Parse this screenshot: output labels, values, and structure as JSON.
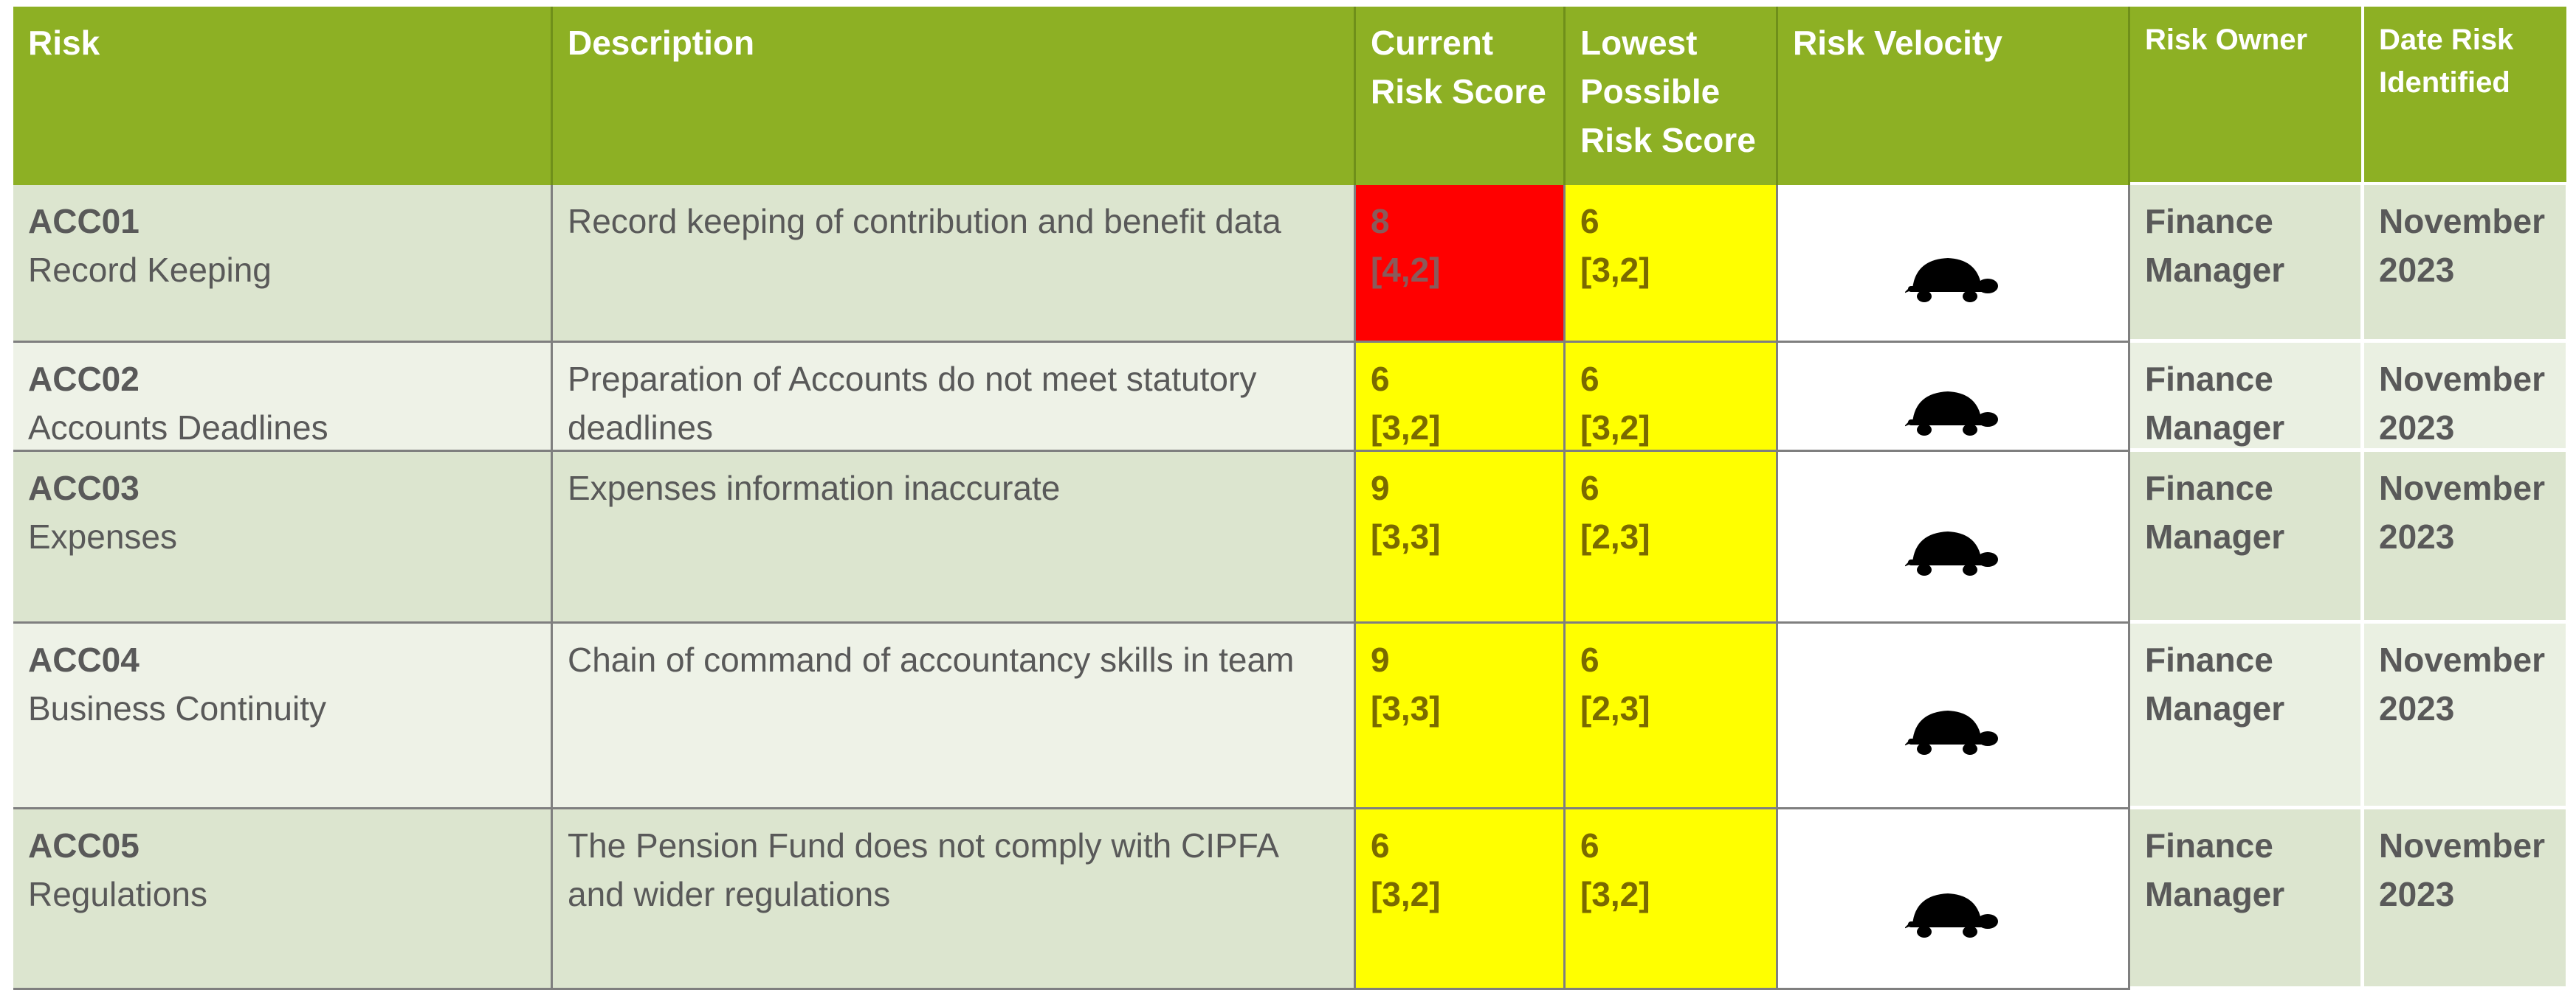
{
  "header": {
    "risk": "Risk",
    "description": "Description",
    "current": "Current Risk Score",
    "lowest": "Lowest Possible Risk Score",
    "velocity": "Risk Velocity",
    "owner": "Risk Owner",
    "date": "Date Risk Identified"
  },
  "rows": [
    {
      "id": "ACC01",
      "name": "Record Keeping",
      "description": "Record keeping of contribution and benefit data",
      "current_score": 8,
      "current_matrix": "[4,2]",
      "current_color": "#ff0000",
      "lowest_score": 6,
      "lowest_matrix": "[3,2]",
      "lowest_color": "#ffff00",
      "owner": "Finance Manager",
      "date": "November 2023"
    },
    {
      "id": "ACC02",
      "name": "Accounts Deadlines",
      "description": "Preparation of Accounts do not meet statutory deadlines",
      "current_score": 6,
      "current_matrix": "[3,2]",
      "current_color": "#ffff00",
      "lowest_score": 6,
      "lowest_matrix": "[3,2]",
      "lowest_color": "#ffff00",
      "owner": "Finance Manager",
      "date": "November 2023"
    },
    {
      "id": "ACC03",
      "name": "Expenses",
      "description": "Expenses information inaccurate",
      "current_score": 9,
      "current_matrix": "[3,3]",
      "current_color": "#ffff00",
      "lowest_score": 6,
      "lowest_matrix": "[2,3]",
      "lowest_color": "#ffff00",
      "owner": "Finance Manager",
      "date": "November 2023"
    },
    {
      "id": "ACC04",
      "name": "Business Continuity",
      "description": "Chain of command of accountancy skills in team",
      "current_score": 9,
      "current_matrix": "[3,3]",
      "current_color": "#ffff00",
      "lowest_score": 6,
      "lowest_matrix": "[2,3]",
      "lowest_color": "#ffff00",
      "owner": "Finance Manager",
      "date": "November 2023"
    },
    {
      "id": "ACC05",
      "name": "Regulations",
      "description": "The Pension Fund does not comply with CIPFA and wider regulations",
      "current_score": 6,
      "current_matrix": "[3,2]",
      "current_color": "#ffff00",
      "lowest_score": 6,
      "lowest_matrix": "[3,2]",
      "lowest_color": "#ffff00",
      "owner": "Finance Manager",
      "date": "November 2023"
    }
  ]
}
